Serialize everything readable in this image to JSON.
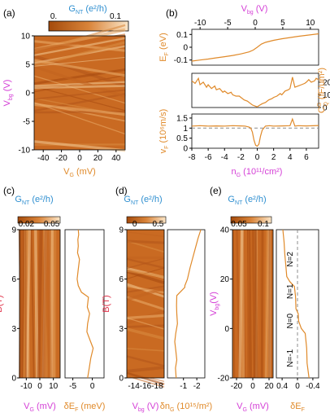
{
  "colors": {
    "orange": "#e08a2a",
    "magenta": "#d43fd6",
    "blue": "#2f8fd0",
    "red": "#e0334a",
    "dash": "#8c8c8c",
    "map_lo": "#a44a0b",
    "map_mid": "#d9843a",
    "map_hi": "#fbe6c8"
  },
  "chart_data": [
    {
      "id": "a",
      "panel_label": "(a)",
      "type": "heatmap",
      "colorbar": {
        "label": "G",
        "label_sub": "NT",
        "label_unit": " (e²/h)",
        "min_label": "0.",
        "max_label": "0.1",
        "range": [
          0,
          0.1
        ]
      },
      "xlabel": "V",
      "xlabel_sub": "G",
      "xlabel_unit": "  (mV)",
      "ylabel": "V",
      "ylabel_sub": "bg",
      "ylabel_unit": " (V)",
      "xlim": [
        -50,
        50
      ],
      "ylim": [
        -10,
        10
      ],
      "xticks": [
        -40,
        -20,
        0,
        20,
        40
      ],
      "yticks": [
        -10,
        -5,
        0,
        5,
        10
      ]
    },
    {
      "id": "b",
      "panel_label": "(b)",
      "type": "line",
      "top_axis": {
        "label": "V",
        "label_sub": "bg",
        "label_unit": " (V)",
        "ticks": [
          -10,
          -5,
          0,
          5,
          10
        ],
        "lim": [
          -11.5,
          11.5
        ]
      },
      "bottom_axis": {
        "label": "n",
        "label_sub": "G",
        "label_unit": " (10¹¹/cm²)",
        "ticks": [
          -8,
          -6,
          -4,
          -2,
          0,
          2,
          4,
          6
        ],
        "lim": [
          -8,
          7.5
        ]
      },
      "subplots": [
        {
          "ylabel": "E",
          "ylabel_sub": "F",
          "ylabel_unit": " (eV)",
          "ylim": [
            -0.14,
            0.14
          ],
          "yticks": [
            -0.1,
            0,
            0.1
          ],
          "x": [
            -8,
            -7,
            -6,
            -5,
            -4,
            -3,
            -2,
            -1,
            -0.5,
            0,
            0.5,
            1,
            2,
            3,
            4,
            5,
            6,
            7.5
          ],
          "y": [
            -0.108,
            -0.1,
            -0.092,
            -0.083,
            -0.074,
            -0.064,
            -0.052,
            -0.036,
            -0.022,
            0,
            0.024,
            0.038,
            0.054,
            0.066,
            0.076,
            0.085,
            0.093,
            0.105
          ]
        },
        {
          "ylabel": "C",
          "ylabel_sub": "Q",
          "ylabel_sup": "G",
          "ylabel_unit": " (fF/um²)",
          "axis_side": "right",
          "ylim": [
            0,
            27
          ],
          "yticks": [
            0,
            10,
            20
          ],
          "x": [
            -8,
            -7.6,
            -7.2,
            -7,
            -6.6,
            -6.2,
            -6,
            -5.6,
            -5.2,
            -5,
            -4.6,
            -4.2,
            -4,
            -3.6,
            -3.2,
            -3,
            -2.6,
            -2.2,
            -2,
            -1.6,
            -1.2,
            -1,
            -0.6,
            -0.2,
            0,
            0.2,
            0.6,
            1,
            1.4,
            1.8,
            2,
            2.4,
            2.8,
            3,
            3.4,
            3.8,
            4,
            4.3,
            4.6,
            5,
            5.4,
            5.8,
            6,
            6.3,
            6.6,
            7,
            7.2,
            7.5
          ],
          "y": [
            21,
            19,
            23,
            18,
            20,
            16,
            18,
            15,
            17,
            14,
            15,
            12,
            13,
            11,
            12,
            10,
            9,
            9,
            8,
            6,
            5,
            4,
            2,
            1,
            0.5,
            1.5,
            3,
            4,
            6,
            7,
            8,
            9,
            11,
            10,
            13,
            14,
            15,
            24,
            16,
            17,
            18,
            19,
            20,
            22,
            20,
            21,
            23,
            22
          ]
        },
        {
          "ylabel": "v",
          "ylabel_sub": "F",
          "ylabel_unit": " (10⁶m/s)",
          "ylim": [
            0,
            1.7
          ],
          "yticks": [
            0,
            0.5,
            1,
            1.5
          ],
          "reference_line": 1.0,
          "x": [
            -8,
            -7,
            -6,
            -5,
            -4,
            -3,
            -2,
            -1.5,
            -1,
            -0.8,
            -0.6,
            -0.4,
            -0.2,
            0,
            0.2,
            0.4,
            0.6,
            0.8,
            1,
            1.5,
            2,
            3,
            4,
            4.3,
            4.6,
            5,
            6,
            7.5
          ],
          "y": [
            1.1,
            1.12,
            1.1,
            1.11,
            1.1,
            1.12,
            1.11,
            1.1,
            1.05,
            1.0,
            0.8,
            0.4,
            0.15,
            0.1,
            0.2,
            0.6,
            0.9,
            1.0,
            1.1,
            1.12,
            1.1,
            1.11,
            1.12,
            1.45,
            1.1,
            1.12,
            1.11,
            1.13
          ]
        }
      ]
    },
    {
      "id": "c",
      "panel_label": "(c)",
      "type": "heatmap",
      "colorbar": {
        "label": "G",
        "label_sub": "NT",
        "label_unit": " (e²/h)",
        "tick_labels": [
          "0.02",
          "0.05"
        ],
        "range": [
          0.02,
          0.05
        ]
      },
      "ylabel": "B(T)",
      "ylim": [
        0,
        9
      ],
      "yticks": [
        0,
        3,
        6,
        9
      ],
      "xlabel": "V",
      "xlabel_sub": "G",
      "xlabel_unit": " (mV)",
      "xlim": [
        -15,
        15
      ],
      "xticks": [
        -10,
        0,
        10
      ],
      "side_line": {
        "xlabel": "δE",
        "xlabel_sub": "F",
        "xlabel_unit": " (meV)",
        "xticks": [
          -5,
          0
        ],
        "xlim": [
          -7,
          3
        ],
        "x": [
          -1.2,
          -0.8,
          -0.4,
          0.2,
          -0.6,
          -1.4,
          -1.2,
          -0.7,
          -1.3,
          -1.0,
          -2.8,
          -3.6,
          -3.9,
          -3.6,
          -3.3,
          -3.8,
          -3.6,
          -3.7,
          -3.5,
          -3.6
        ],
        "y": [
          0,
          0.6,
          1.2,
          1.8,
          2.3,
          2.8,
          3.3,
          3.9,
          4.3,
          4.9,
          5.2,
          5.6,
          6.0,
          6.6,
          7.2,
          7.6,
          8.0,
          8.4,
          8.7,
          9.0
        ]
      }
    },
    {
      "id": "d",
      "panel_label": "(d)",
      "type": "heatmap",
      "colorbar": {
        "label": "G",
        "label_sub": "NT",
        "label_unit": " (e²/h)",
        "tick_labels": [
          "0",
          "0.5"
        ],
        "range": [
          0,
          0.5
        ]
      },
      "ylabel": "B(T)",
      "ylim": [
        0,
        9
      ],
      "yticks": [
        0,
        3,
        6,
        9
      ],
      "xlabel": "V",
      "xlabel_sub": "bg",
      "xlabel_unit": " (V)",
      "xlim": [
        -15,
        -13
      ],
      "tick_text": "-14-16-18",
      "side_line": {
        "xlabel": "δn",
        "xlabel_sub": "G",
        "xlabel_unit": " (10¹⁵/m²)",
        "xticks": [
          -1,
          -2
        ],
        "xlim": [
          0.2,
          -2.6
        ],
        "x": [
          -0.45,
          -0.4,
          -0.5,
          -0.42,
          -0.35,
          -0.42,
          -0.55,
          -0.5,
          -0.48,
          -0.5,
          -1.1,
          -1.1,
          -1.3,
          -1.5,
          -1.7,
          -1.9,
          -2.1,
          -2.3
        ],
        "y": [
          0,
          0.6,
          1.1,
          1.7,
          2.2,
          2.7,
          3.3,
          3.9,
          4.4,
          5.0,
          5.5,
          5.6,
          6.0,
          6.7,
          7.3,
          7.9,
          8.5,
          9.0
        ]
      }
    },
    {
      "id": "e",
      "panel_label": "(e)",
      "type": "heatmap",
      "colorbar": {
        "label": "G",
        "label_sub": "NT",
        "label_unit": " (e²/h)",
        "tick_labels": [
          "0.05",
          "0.1"
        ],
        "range": [
          0.05,
          0.1
        ]
      },
      "ylabel": "V",
      "ylabel_sub": "bg",
      "ylabel_unit": "(V)",
      "ylim": [
        -20,
        40
      ],
      "yticks": [
        -20,
        0,
        20,
        40
      ],
      "xlabel": "V",
      "xlabel_sub": "G",
      "xlabel_unit": " (mV)",
      "xlim": [
        -25,
        25
      ],
      "xticks": [
        -20,
        0,
        20
      ],
      "side_line": {
        "xlabel": "δE",
        "xlabel_sub": "F",
        "xticks": [
          0.4,
          0.0,
          -0.4
        ],
        "xlim": [
          0.55,
          -0.55
        ],
        "x": [
          0.38,
          0.35,
          0.33,
          0.3,
          0.28,
          0.2,
          0.08,
          0.05,
          0.04,
          -0.02,
          -0.03,
          -0.1,
          -0.2,
          -0.24,
          -0.25,
          -0.3
        ],
        "y": [
          40,
          35,
          30,
          25,
          21,
          19,
          17,
          13,
          8,
          6,
          3,
          0,
          -2,
          -8,
          -14,
          -20
        ],
        "annotations": [
          {
            "text": "N=2",
            "x": 0.08,
            "y": 28
          },
          {
            "text": "N=1",
            "x": 0.08,
            "y": 15
          },
          {
            "text": "N=0",
            "x": 0.08,
            "y": 3
          },
          {
            "text": "N=-1",
            "x": 0.08,
            "y": -12
          }
        ]
      }
    }
  ]
}
